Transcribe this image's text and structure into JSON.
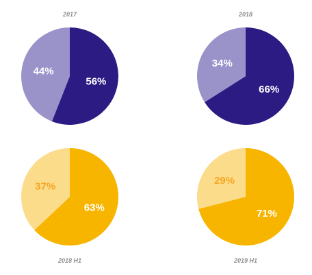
{
  "chart_data": [
    {
      "type": "pie",
      "title": "2017",
      "slices": [
        {
          "value": 56,
          "label": "56%",
          "color": "#2d1b84",
          "label_color": "#ffffff"
        },
        {
          "value": 44,
          "label": "44%",
          "color": "#9a93c9",
          "label_color": "#ffffff"
        }
      ]
    },
    {
      "type": "pie",
      "title": "2018",
      "slices": [
        {
          "value": 66,
          "label": "66%",
          "color": "#2d1b84",
          "label_color": "#ffffff"
        },
        {
          "value": 34,
          "label": "34%",
          "color": "#9a93c9",
          "label_color": "#ffffff"
        }
      ]
    },
    {
      "type": "pie",
      "title": "2018 H1",
      "slices": [
        {
          "value": 63,
          "label": "63%",
          "color": "#f7b500",
          "label_color": "#ffffff"
        },
        {
          "value": 37,
          "label": "37%",
          "color": "#fbdc8a",
          "label_color": "#f5a623"
        }
      ]
    },
    {
      "type": "pie",
      "title": "2019 H1",
      "slices": [
        {
          "value": 71,
          "label": "71%",
          "color": "#f7b500",
          "label_color": "#ffffff"
        },
        {
          "value": 29,
          "label": "29%",
          "color": "#fbdc8a",
          "label_color": "#f5a623"
        }
      ]
    }
  ]
}
